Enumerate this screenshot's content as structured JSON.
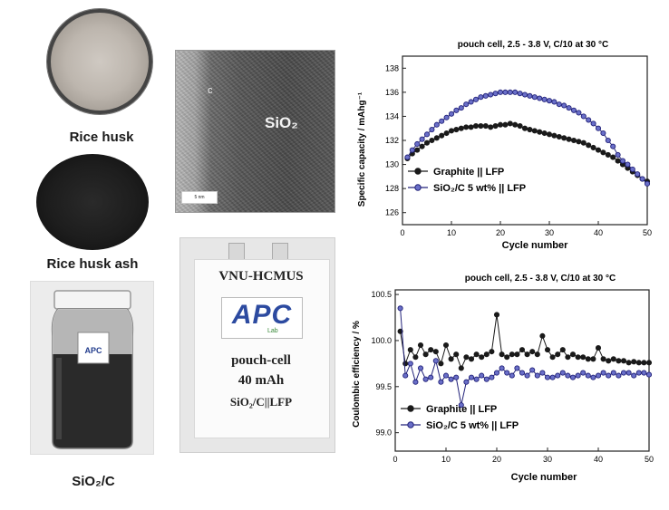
{
  "left_panel": {
    "rice_husk_label": "Rice husk",
    "rice_husk_ash_label": "Rice husk ash",
    "sio2c_label": "SiO₂/C",
    "jar_logo": "APC"
  },
  "tem_panel": {
    "label": "SiO₂",
    "marker": "c",
    "scale_bar": "5 nm"
  },
  "pouch_cell": {
    "title": "VNU-HCMUS",
    "logo": "APC",
    "logo_sub": "Lab",
    "line1": "pouch-cell",
    "line2": "40 mAh",
    "line3": "SiO₂/C||LFP"
  },
  "colors": {
    "graphite": "#1a1a1a",
    "sio2c": "#23237a"
  },
  "chart_data": [
    {
      "type": "line",
      "title": "pouch cell, 2.5 - 3.8 V, C/10 at 30 °C",
      "xlabel": "Cycle number",
      "ylabel": "Specific capacity / mAhg⁻¹",
      "xlim": [
        0,
        50
      ],
      "ylim": [
        125,
        139
      ],
      "xticks": [
        0,
        10,
        20,
        30,
        40,
        50
      ],
      "yticks": [
        126,
        128,
        130,
        132,
        134,
        136,
        138
      ],
      "legend_position": "bottom-left",
      "series": [
        {
          "name": "Graphite || LFP",
          "marker_fill": "#1a1a1a",
          "x": [
            1,
            2,
            3,
            4,
            5,
            6,
            7,
            8,
            9,
            10,
            11,
            12,
            13,
            14,
            15,
            16,
            17,
            18,
            19,
            20,
            21,
            22,
            23,
            24,
            25,
            26,
            27,
            28,
            29,
            30,
            31,
            32,
            33,
            34,
            35,
            36,
            37,
            38,
            39,
            40,
            41,
            42,
            43,
            44,
            45,
            46,
            47,
            48,
            49,
            50
          ],
          "values": [
            130.5,
            130.9,
            131.2,
            131.5,
            131.8,
            132.0,
            132.2,
            132.4,
            132.6,
            132.8,
            132.9,
            133.0,
            133.1,
            133.1,
            133.2,
            133.2,
            133.2,
            133.1,
            133.2,
            133.3,
            133.3,
            133.4,
            133.3,
            133.2,
            133.0,
            132.9,
            132.8,
            132.7,
            132.6,
            132.5,
            132.4,
            132.3,
            132.2,
            132.1,
            132.0,
            131.9,
            131.8,
            131.6,
            131.4,
            131.2,
            131.0,
            130.8,
            130.6,
            130.3,
            130.0,
            129.7,
            129.4,
            129.1,
            128.8,
            128.6
          ]
        },
        {
          "name": "SiO₂/C 5 wt% || LFP",
          "marker_fill": "#6a6fc8",
          "x": [
            1,
            2,
            3,
            4,
            5,
            6,
            7,
            8,
            9,
            10,
            11,
            12,
            13,
            14,
            15,
            16,
            17,
            18,
            19,
            20,
            21,
            22,
            23,
            24,
            25,
            26,
            27,
            28,
            29,
            30,
            31,
            32,
            33,
            34,
            35,
            36,
            37,
            38,
            39,
            40,
            41,
            42,
            43,
            44,
            45,
            46,
            47,
            48,
            49,
            50
          ],
          "values": [
            130.6,
            131.2,
            131.7,
            132.1,
            132.5,
            132.9,
            133.3,
            133.6,
            133.9,
            134.2,
            134.5,
            134.7,
            135.0,
            135.2,
            135.4,
            135.6,
            135.7,
            135.8,
            135.9,
            136.0,
            136.0,
            136.0,
            136.0,
            135.9,
            135.8,
            135.7,
            135.6,
            135.5,
            135.4,
            135.3,
            135.2,
            135.0,
            134.9,
            134.7,
            134.5,
            134.3,
            134.0,
            133.7,
            133.4,
            133.0,
            132.6,
            132.0,
            131.5,
            130.8,
            130.3,
            130.0,
            129.6,
            129.2,
            128.8,
            128.4
          ]
        }
      ]
    },
    {
      "type": "line",
      "title": "pouch cell, 2.5 - 3.8 V, C/10 at 30 °C",
      "xlabel": "Cycle number",
      "ylabel": "Coulombic efficiency / %",
      "xlim": [
        0,
        50
      ],
      "ylim": [
        98.8,
        100.55
      ],
      "xticks": [
        0,
        10,
        20,
        30,
        40,
        50
      ],
      "yticks": [
        99.0,
        99.5,
        100.0,
        100.5
      ],
      "legend_position": "bottom-left",
      "series": [
        {
          "name": "Graphite || LFP",
          "marker_fill": "#1a1a1a",
          "x": [
            1,
            2,
            3,
            4,
            5,
            6,
            7,
            8,
            9,
            10,
            11,
            12,
            13,
            14,
            15,
            16,
            17,
            18,
            19,
            20,
            21,
            22,
            23,
            24,
            25,
            26,
            27,
            28,
            29,
            30,
            31,
            32,
            33,
            34,
            35,
            36,
            37,
            38,
            39,
            40,
            41,
            42,
            43,
            44,
            45,
            46,
            47,
            48,
            49,
            50
          ],
          "values": [
            100.1,
            99.75,
            99.9,
            99.82,
            99.95,
            99.85,
            99.9,
            99.88,
            99.75,
            99.95,
            99.8,
            99.85,
            99.7,
            99.82,
            99.8,
            99.85,
            99.82,
            99.85,
            99.88,
            100.28,
            99.85,
            99.82,
            99.85,
            99.85,
            99.9,
            99.85,
            99.88,
            99.85,
            100.05,
            99.9,
            99.82,
            99.85,
            99.9,
            99.82,
            99.85,
            99.82,
            99.82,
            99.8,
            99.8,
            99.92,
            99.8,
            99.78,
            99.8,
            99.78,
            99.78,
            99.76,
            99.77,
            99.76,
            99.76,
            99.76
          ]
        },
        {
          "name": "SiO₂/C 5 wt% || LFP",
          "marker_fill": "#6a6fc8",
          "x": [
            1,
            2,
            3,
            4,
            5,
            6,
            7,
            8,
            9,
            10,
            11,
            12,
            13,
            14,
            15,
            16,
            17,
            18,
            19,
            20,
            21,
            22,
            23,
            24,
            25,
            26,
            27,
            28,
            29,
            30,
            31,
            32,
            33,
            34,
            35,
            36,
            37,
            38,
            39,
            40,
            41,
            42,
            43,
            44,
            45,
            46,
            47,
            48,
            49,
            50
          ],
          "values": [
            100.35,
            99.62,
            99.75,
            99.55,
            99.7,
            99.58,
            99.6,
            99.78,
            99.55,
            99.62,
            99.58,
            99.6,
            99.3,
            99.55,
            99.6,
            99.58,
            99.62,
            99.58,
            99.6,
            99.65,
            99.7,
            99.65,
            99.62,
            99.7,
            99.65,
            99.62,
            99.68,
            99.62,
            99.65,
            99.6,
            99.6,
            99.62,
            99.65,
            99.62,
            99.6,
            99.62,
            99.65,
            99.62,
            99.6,
            99.62,
            99.65,
            99.62,
            99.65,
            99.62,
            99.65,
            99.65,
            99.62,
            99.65,
            99.65,
            99.63
          ]
        }
      ]
    }
  ]
}
